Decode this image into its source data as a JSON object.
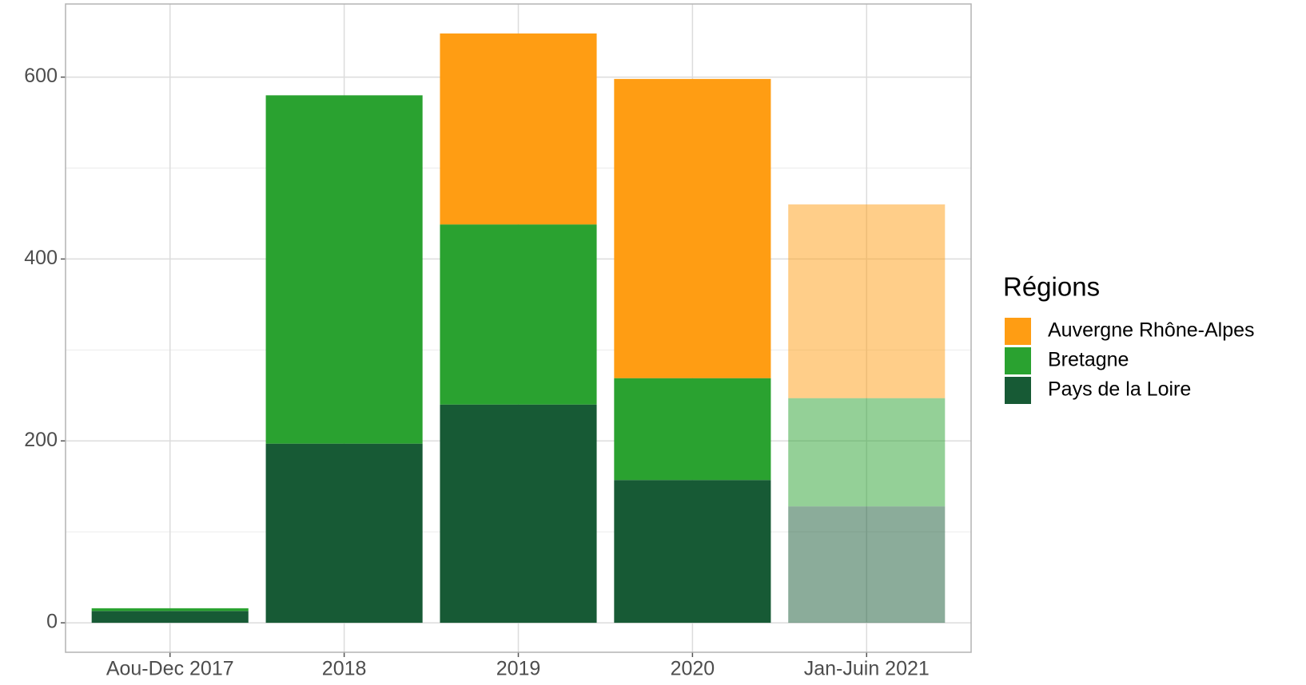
{
  "chart_data": {
    "type": "stacked_bar",
    "categories": [
      "Aou-Dec 2017",
      "2018",
      "2019",
      "2020",
      "Jan-Juin 2021"
    ],
    "series": [
      {
        "name": "Pays de la Loire",
        "color": "#175a35",
        "values": [
          13,
          197,
          240,
          157,
          128
        ]
      },
      {
        "name": "Bretagne",
        "color": "#2aa230",
        "values": [
          3,
          383,
          198,
          112,
          119
        ]
      },
      {
        "name": "Auvergne Rhône-Alpes",
        "color": "#ff9d13",
        "values": [
          0,
          0,
          210,
          329,
          213
        ]
      }
    ],
    "opacity": [
      1,
      1,
      1,
      1,
      0.5
    ],
    "ylim": [
      -32.4,
      680.4
    ],
    "yticks": [
      0,
      200,
      400,
      600
    ],
    "yminor": [
      100,
      300,
      500
    ],
    "grid": true,
    "legend_title": "Régions",
    "legend": "right"
  }
}
